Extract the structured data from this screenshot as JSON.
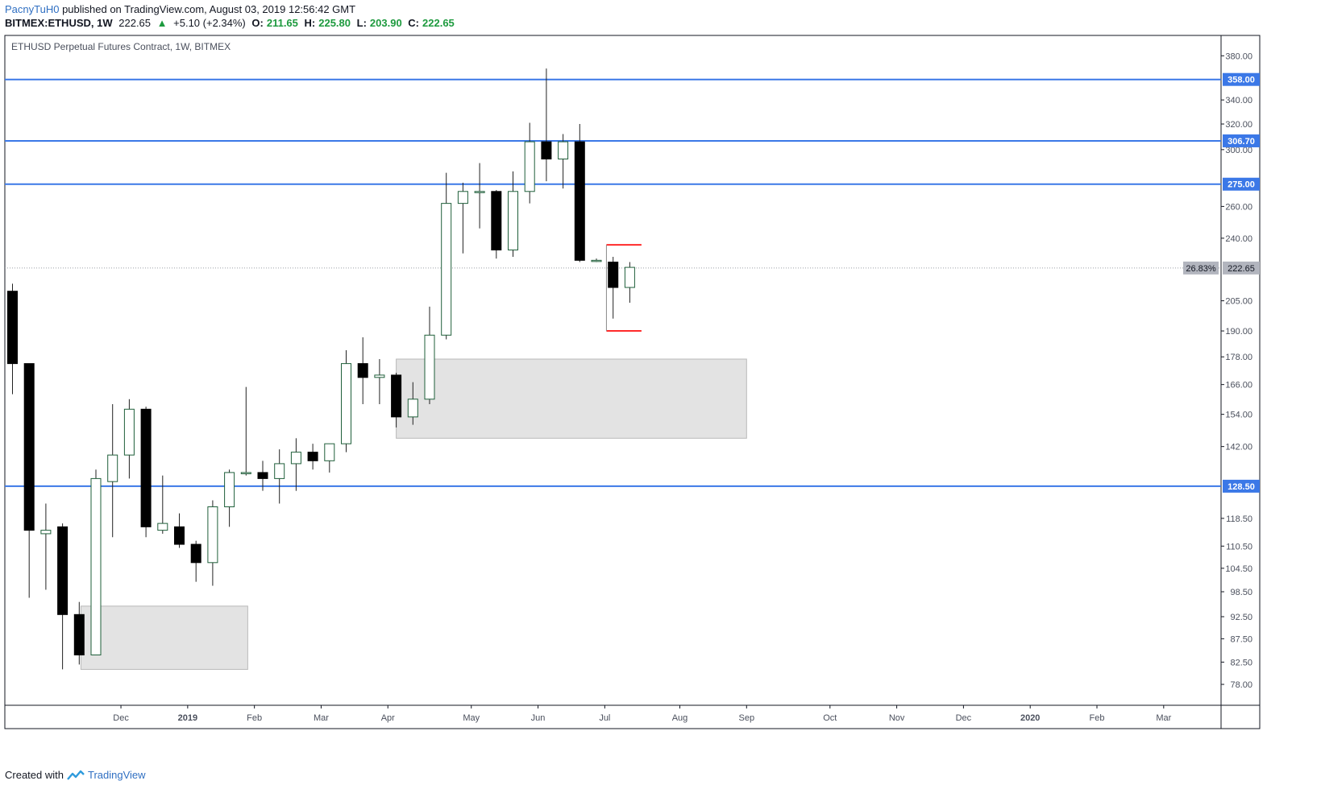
{
  "header": {
    "author": "PacnyTuH0",
    "published_text": "published on TradingView.com, August 03, 2019 12:56:42 GMT",
    "symbol": "BITMEX:ETHUSD, 1W",
    "last": "222.65",
    "change_icon": "up-triangle-icon",
    "change": "+5.10 (+2.34%)",
    "open_label": "O:",
    "open": "211.65",
    "high_label": "H:",
    "high": "225.80",
    "low_label": "L:",
    "low": "203.90",
    "close_label": "C:",
    "close": "222.65"
  },
  "chart_data": {
    "type": "candlestick",
    "title": "ETHUSD Perpetual Futures Contract, 1W, BITMEX",
    "y_axis": {
      "scale": "log",
      "ylim": [
        74,
        400
      ],
      "ticks": [
        "78.00",
        "82.50",
        "87.50",
        "92.50",
        "98.50",
        "104.50",
        "110.50",
        "118.50",
        "142.00",
        "154.00",
        "166.00",
        "178.00",
        "190.00",
        "205.00",
        "240.00",
        "260.00",
        "300.00",
        "320.00",
        "340.00",
        "380.00"
      ]
    },
    "x_axis": {
      "ticks": [
        "Dec",
        "2019",
        "Feb",
        "Mar",
        "Apr",
        "May",
        "Jun",
        "Jul",
        "Aug",
        "Sep",
        "Oct",
        "Nov",
        "Dec",
        "2020",
        "Feb",
        "Mar"
      ],
      "tick_week": [
        6.5,
        10.5,
        14.5,
        18.5,
        22.5,
        27.5,
        31.5,
        35.5,
        40,
        44,
        49,
        53,
        57,
        61,
        65,
        69
      ]
    },
    "candles": [
      {
        "o": 210,
        "h": 214,
        "l": 162,
        "c": 175
      },
      {
        "o": 175,
        "h": 175,
        "l": 97,
        "c": 115
      },
      {
        "o": 114,
        "h": 123,
        "l": 99,
        "c": 115
      },
      {
        "o": 116,
        "h": 117,
        "l": 81,
        "c": 93
      },
      {
        "o": 93,
        "h": 96,
        "l": 82,
        "c": 84
      },
      {
        "o": 84,
        "h": 134,
        "l": 84,
        "c": 131
      },
      {
        "o": 130,
        "h": 158,
        "l": 113,
        "c": 139
      },
      {
        "o": 139,
        "h": 160,
        "l": 131,
        "c": 156
      },
      {
        "o": 156,
        "h": 157,
        "l": 113,
        "c": 116
      },
      {
        "o": 115,
        "h": 132,
        "l": 114,
        "c": 117
      },
      {
        "o": 116,
        "h": 120,
        "l": 110,
        "c": 111
      },
      {
        "o": 111,
        "h": 112,
        "l": 101,
        "c": 106
      },
      {
        "o": 106,
        "h": 124,
        "l": 100,
        "c": 122
      },
      {
        "o": 122,
        "h": 134,
        "l": 116,
        "c": 133
      },
      {
        "o": 133,
        "h": 165,
        "l": 132,
        "c": 133
      },
      {
        "o": 133,
        "h": 137,
        "l": 127,
        "c": 131
      },
      {
        "o": 131,
        "h": 141,
        "l": 123,
        "c": 136
      },
      {
        "o": 136,
        "h": 145,
        "l": 127,
        "c": 140
      },
      {
        "o": 140,
        "h": 143,
        "l": 134,
        "c": 137
      },
      {
        "o": 137,
        "h": 143,
        "l": 133,
        "c": 143
      },
      {
        "o": 143,
        "h": 181,
        "l": 140,
        "c": 175
      },
      {
        "o": 175,
        "h": 187,
        "l": 158,
        "c": 169
      },
      {
        "o": 169,
        "h": 177,
        "l": 158,
        "c": 170
      },
      {
        "o": 170,
        "h": 171,
        "l": 149,
        "c": 153
      },
      {
        "o": 153,
        "h": 167,
        "l": 150,
        "c": 160
      },
      {
        "o": 160,
        "h": 202,
        "l": 158,
        "c": 188
      },
      {
        "o": 188,
        "h": 283,
        "l": 186,
        "c": 262
      },
      {
        "o": 262,
        "h": 276,
        "l": 231,
        "c": 270
      },
      {
        "o": 270,
        "h": 290,
        "l": 246,
        "c": 270
      },
      {
        "o": 270,
        "h": 271,
        "l": 228,
        "c": 233
      },
      {
        "o": 233,
        "h": 284,
        "l": 229,
        "c": 270
      },
      {
        "o": 270,
        "h": 321,
        "l": 262,
        "c": 306
      },
      {
        "o": 306,
        "h": 368,
        "l": 277,
        "c": 293
      },
      {
        "o": 293,
        "h": 312,
        "l": 272,
        "c": 306
      },
      {
        "o": 306,
        "h": 320,
        "l": 226,
        "c": 227
      },
      {
        "o": 227,
        "h": 228,
        "l": 226,
        "c": 227
      },
      {
        "o": 226,
        "h": 229,
        "l": 196,
        "c": 212
      },
      {
        "o": 212,
        "h": 226,
        "l": 204,
        "c": 223
      }
    ],
    "horizontal_lines": [
      {
        "price": 358.0,
        "label": "358.00",
        "color": "#3b78e7"
      },
      {
        "price": 306.7,
        "label": "306.70",
        "color": "#3b78e7"
      },
      {
        "price": 275.0,
        "label": "275.00",
        "color": "#3b78e7"
      },
      {
        "price": 128.5,
        "label": "128.50",
        "color": "#3b78e7"
      }
    ],
    "zones": [
      {
        "week_start": 4.1,
        "week_end": 14.1,
        "price_top": 95,
        "price_bottom": 81
      },
      {
        "week_start": 23.0,
        "week_end": 44.0,
        "price_top": 177,
        "price_bottom": 145
      }
    ],
    "range_bracket": {
      "week_start": 35.6,
      "week_end": 37.7,
      "price_top": 236,
      "price_bottom": 190,
      "color": "#ff2a2a"
    },
    "last_price": {
      "price": 222.65,
      "label": "222.65",
      "pct_label": "26.83%"
    },
    "colors": {
      "up": "#ffffff",
      "down": "#000000",
      "wick": "#000000",
      "up_border": "#1f5f3a",
      "grid": "#ffffff"
    }
  },
  "footer": {
    "created_with": "Created with",
    "brand": "TradingView",
    "logo_icon": "tradingview-logo-icon"
  }
}
